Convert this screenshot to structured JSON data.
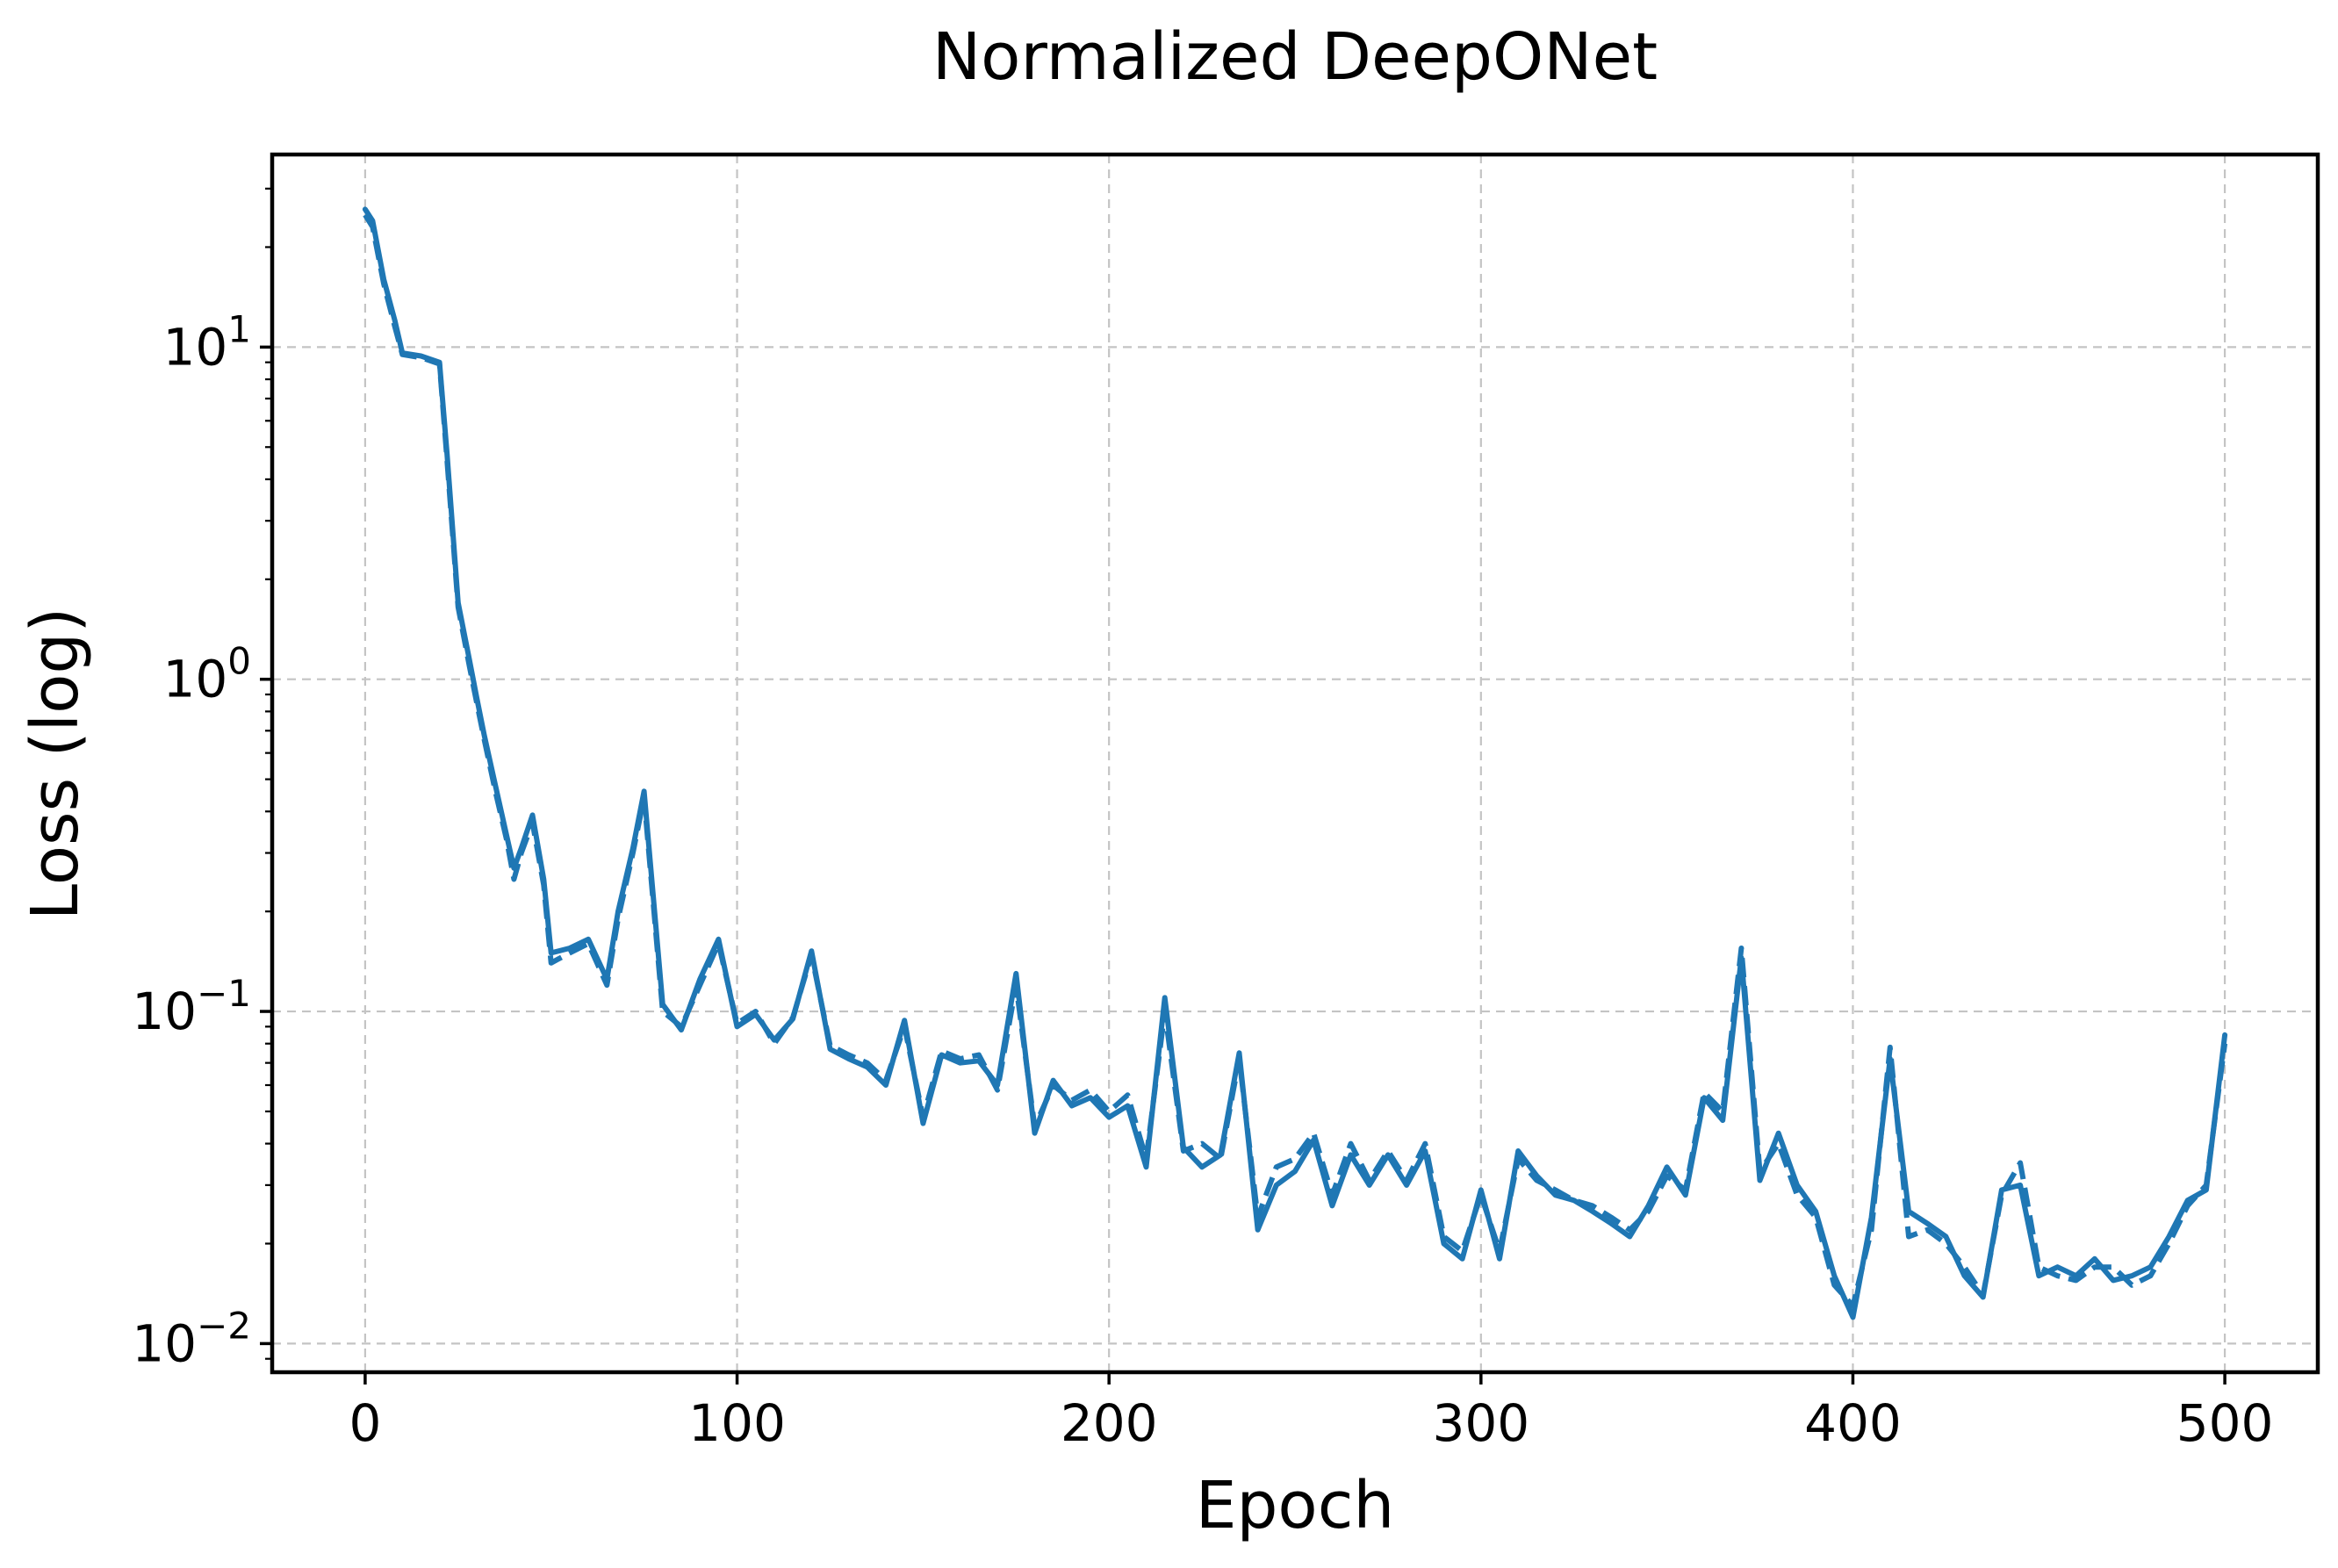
{
  "chart_data": {
    "type": "line",
    "title": "Normalized DeepONet",
    "xlabel": "Epoch",
    "ylabel": "Loss (log)",
    "xlim": [
      -25,
      525
    ],
    "ylim": [
      0.0082,
      38
    ],
    "yscale": "log",
    "grid": true,
    "x_ticks": [
      {
        "value": 0,
        "label": "0"
      },
      {
        "value": 100,
        "label": "100"
      },
      {
        "value": 200,
        "label": "200"
      },
      {
        "value": 300,
        "label": "300"
      },
      {
        "value": 400,
        "label": "400"
      },
      {
        "value": 500,
        "label": "500"
      }
    ],
    "y_ticks": [
      {
        "value": 0.01,
        "base": "10",
        "exp": "−2"
      },
      {
        "value": 0.1,
        "base": "10",
        "exp": "−1"
      },
      {
        "value": 1,
        "base": "10",
        "exp": "0"
      },
      {
        "value": 10,
        "base": "10",
        "exp": "1"
      }
    ],
    "series": [
      {
        "style": "solid",
        "color": "#1f77b4",
        "x": [
          0,
          2,
          5,
          8,
          10,
          15,
          20,
          22,
          25,
          28,
          30,
          32,
          35,
          38,
          40,
          42,
          45,
          48,
          50,
          55,
          60,
          65,
          68,
          72,
          75,
          80,
          85,
          90,
          95,
          100,
          105,
          110,
          115,
          120,
          125,
          130,
          135,
          140,
          145,
          150,
          155,
          160,
          165,
          170,
          175,
          180,
          185,
          190,
          195,
          200,
          205,
          210,
          215,
          220,
          225,
          230,
          235,
          240,
          245,
          250,
          255,
          260,
          265,
          270,
          275,
          280,
          285,
          290,
          295,
          300,
          305,
          310,
          315,
          320,
          325,
          330,
          335,
          340,
          345,
          350,
          355,
          360,
          365,
          370,
          375,
          380,
          385,
          390,
          395,
          400,
          405,
          410,
          415,
          420,
          425,
          430,
          435,
          440,
          445,
          450,
          455,
          460,
          465,
          470,
          475,
          480,
          485,
          490,
          495,
          500
        ],
        "y": [
          26,
          24,
          16,
          12,
          9.6,
          9.4,
          9,
          4.8,
          1.7,
          1.15,
          0.88,
          0.68,
          0.48,
          0.34,
          0.27,
          0.31,
          0.39,
          0.25,
          0.15,
          0.155,
          0.165,
          0.125,
          0.2,
          0.31,
          0.46,
          0.105,
          0.088,
          0.125,
          0.165,
          0.09,
          0.098,
          0.082,
          0.095,
          0.152,
          0.077,
          0.072,
          0.068,
          0.06,
          0.094,
          0.046,
          0.074,
          0.07,
          0.071,
          0.06,
          0.13,
          0.043,
          0.062,
          0.052,
          0.055,
          0.048,
          0.052,
          0.034,
          0.11,
          0.039,
          0.034,
          0.037,
          0.075,
          0.022,
          0.03,
          0.033,
          0.041,
          0.026,
          0.037,
          0.03,
          0.037,
          0.03,
          0.038,
          0.02,
          0.018,
          0.029,
          0.018,
          0.038,
          0.032,
          0.028,
          0.027,
          0.025,
          0.023,
          0.021,
          0.026,
          0.034,
          0.028,
          0.055,
          0.047,
          0.145,
          0.031,
          0.043,
          0.03,
          0.025,
          0.016,
          0.012,
          0.024,
          0.072,
          0.025,
          0.023,
          0.021,
          0.016,
          0.0138,
          0.029,
          0.03,
          0.016,
          0.017,
          0.016,
          0.018,
          0.0155,
          0.016,
          0.017,
          0.021,
          0.027,
          0.029,
          0.085
        ]
      },
      {
        "style": "dashed",
        "color": "#1f77b4",
        "x": [
          0,
          2,
          5,
          8,
          10,
          15,
          20,
          22,
          25,
          28,
          30,
          32,
          35,
          38,
          40,
          42,
          45,
          48,
          50,
          55,
          60,
          65,
          68,
          72,
          75,
          80,
          85,
          90,
          95,
          100,
          105,
          110,
          115,
          120,
          125,
          130,
          135,
          140,
          145,
          150,
          155,
          160,
          165,
          170,
          175,
          180,
          185,
          190,
          195,
          200,
          205,
          210,
          215,
          220,
          225,
          230,
          235,
          240,
          245,
          250,
          255,
          260,
          265,
          270,
          275,
          280,
          285,
          290,
          295,
          300,
          305,
          310,
          315,
          320,
          325,
          330,
          335,
          340,
          345,
          350,
          355,
          360,
          365,
          370,
          375,
          380,
          385,
          390,
          395,
          400,
          405,
          410,
          415,
          420,
          425,
          430,
          435,
          440,
          445,
          450,
          455,
          460,
          465,
          470,
          475,
          480,
          485,
          490,
          495,
          500
        ],
        "y": [
          25,
          23,
          15.5,
          11.5,
          9.5,
          9.3,
          8.9,
          4.6,
          1.65,
          1.1,
          0.85,
          0.66,
          0.46,
          0.33,
          0.25,
          0.3,
          0.37,
          0.24,
          0.14,
          0.15,
          0.16,
          0.12,
          0.19,
          0.3,
          0.44,
          0.1,
          0.09,
          0.12,
          0.16,
          0.092,
          0.1,
          0.08,
          0.096,
          0.148,
          0.079,
          0.074,
          0.07,
          0.062,
          0.09,
          0.048,
          0.076,
          0.072,
          0.074,
          0.058,
          0.12,
          0.045,
          0.06,
          0.054,
          0.058,
          0.05,
          0.056,
          0.036,
          0.1,
          0.038,
          0.04,
          0.036,
          0.072,
          0.024,
          0.034,
          0.036,
          0.043,
          0.028,
          0.04,
          0.031,
          0.038,
          0.031,
          0.04,
          0.021,
          0.019,
          0.028,
          0.019,
          0.036,
          0.031,
          0.029,
          0.027,
          0.026,
          0.024,
          0.022,
          0.025,
          0.032,
          0.029,
          0.057,
          0.05,
          0.155,
          0.033,
          0.04,
          0.028,
          0.024,
          0.015,
          0.013,
          0.022,
          0.078,
          0.021,
          0.022,
          0.02,
          0.017,
          0.014,
          0.028,
          0.035,
          0.017,
          0.016,
          0.0155,
          0.017,
          0.017,
          0.015,
          0.016,
          0.02,
          0.026,
          0.03,
          0.08
        ]
      }
    ]
  }
}
